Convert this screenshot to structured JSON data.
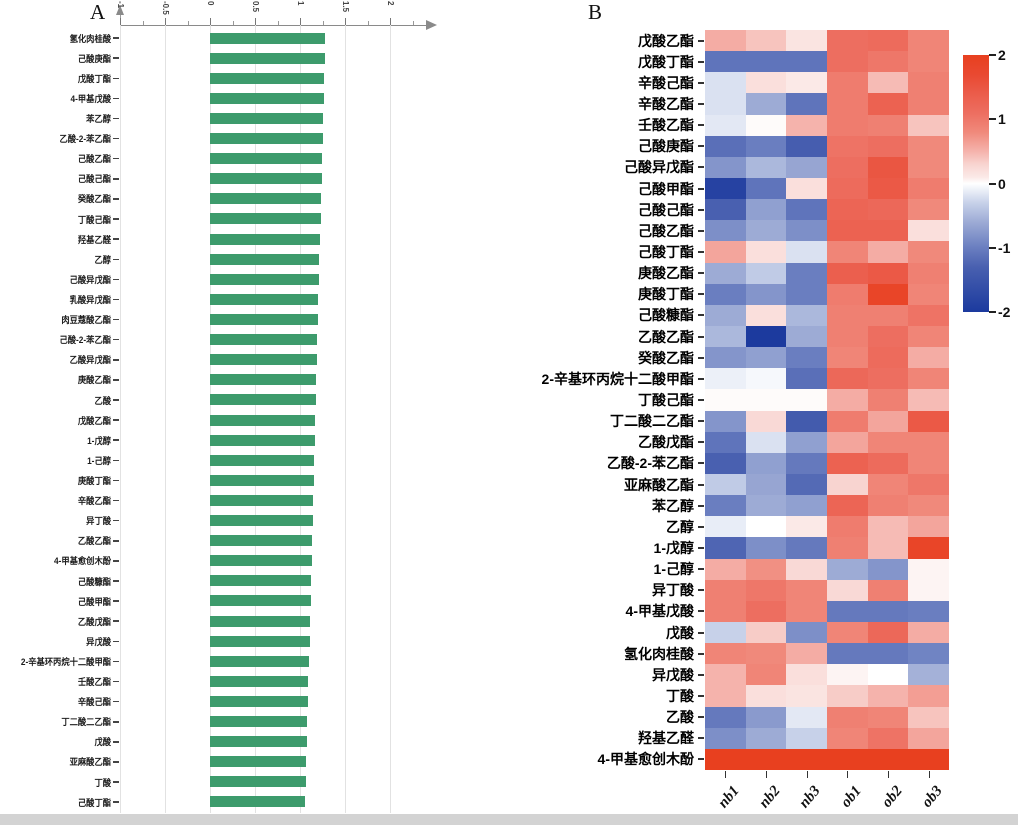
{
  "panels": {
    "a_label": "A",
    "b_label": "B"
  },
  "chart_data": [
    {
      "type": "bar",
      "panel": "A",
      "orientation": "horizontal",
      "bar_color": "#3d9b6c",
      "xlim": [
        -1,
        2.5
      ],
      "x_ticks": [
        -1,
        -0.5,
        0,
        0.5,
        1,
        1.5,
        2
      ],
      "x_tick_labels": [
        "-1",
        "-0.5",
        "0",
        "0.5",
        "1",
        "1.5",
        "2"
      ],
      "grid": true,
      "categories": [
        "氢化肉桂酸",
        "己酸庚酯",
        "戊酸丁酯",
        "4-甲基戊酸",
        "苯乙醇",
        "乙酸-2-苯乙酯",
        "己酸乙酯",
        "己酸己酯",
        "癸酸乙酯",
        "丁酸己酯",
        "羟基乙醛",
        "乙醇",
        "己酸异戊酯",
        "乳酸异戊酯",
        "肉豆蔻酸乙酯",
        "己酸-2-苯乙酯",
        "乙酸异戊酯",
        "庚酸乙酯",
        "乙酸",
        "戊酸乙酯",
        "1-戊醇",
        "1-己醇",
        "庚酸丁酯",
        "辛酸乙酯",
        "异丁酸",
        "乙酸乙酯",
        "4-甲基愈创木酚",
        "己酸糠酯",
        "己酸甲酯",
        "乙酸戊酯",
        "异戊酸",
        "2-辛基环丙烷十二酸甲酯",
        "壬酸乙酯",
        "辛酸己酯",
        "丁二酸二乙酯",
        "戊酸",
        "亚麻酸乙酯",
        "丁酸",
        "己酸丁酯"
      ],
      "values": [
        1.28,
        1.274,
        1.268,
        1.263,
        1.257,
        1.251,
        1.245,
        1.239,
        1.234,
        1.228,
        1.222,
        1.216,
        1.21,
        1.205,
        1.199,
        1.193,
        1.187,
        1.181,
        1.176,
        1.17,
        1.164,
        1.158,
        1.152,
        1.147,
        1.141,
        1.135,
        1.129,
        1.123,
        1.118,
        1.112,
        1.106,
        1.1,
        1.094,
        1.089,
        1.083,
        1.077,
        1.071,
        1.065,
        1.06
      ]
    },
    {
      "type": "heatmap",
      "panel": "B",
      "rows": [
        "戊酸乙酯",
        "戊酸丁酯",
        "辛酸己酯",
        "辛酸乙酯",
        "壬酸乙酯",
        "己酸庚酯",
        "己酸异戊酯",
        "己酸甲酯",
        "己酸己酯",
        "己酸乙酯",
        "己酸丁酯",
        "庚酸乙酯",
        "庚酸丁酯",
        "己酸糠酯",
        "乙酸乙酯",
        "癸酸乙酯",
        "2-辛基环丙烷十二酸甲酯",
        "丁酸己酯",
        "丁二酸二乙酯",
        "乙酸戊酯",
        "乙酸-2-苯乙酯",
        "亚麻酸乙酯",
        "苯乙醇",
        "乙醇",
        "1-戊醇",
        "1-己醇",
        "异丁酸",
        "4-甲基戊酸",
        "戊酸",
        "氢化肉桂酸",
        "异戊酸",
        "丁酸",
        "乙酸",
        "羟基乙醛",
        "4-甲基愈创木酚"
      ],
      "columns": [
        "nb1",
        "nb2",
        "nb3",
        "ob1",
        "ob2",
        "ob3"
      ],
      "values": [
        [
          0.55,
          0.4,
          0.15,
          1.1,
          1.15,
          0.85
        ],
        [
          -1.1,
          -1.1,
          -1.1,
          1.1,
          1.0,
          0.85
        ],
        [
          -0.2,
          0.2,
          0.1,
          0.95,
          0.45,
          0.9
        ],
        [
          -0.2,
          -0.6,
          -1.1,
          0.95,
          1.3,
          0.9
        ],
        [
          -0.15,
          0.02,
          0.5,
          0.95,
          0.9,
          0.4
        ],
        [
          -1.15,
          -1.0,
          -1.35,
          1.05,
          1.1,
          0.8
        ],
        [
          -0.8,
          -0.5,
          -0.65,
          1.1,
          1.5,
          0.8
        ],
        [
          -1.85,
          -1.1,
          0.2,
          1.15,
          1.45,
          0.95
        ],
        [
          -1.3,
          -0.7,
          -1.1,
          1.25,
          1.2,
          0.8
        ],
        [
          -0.85,
          -0.6,
          -0.85,
          1.3,
          1.3,
          0.2
        ],
        [
          0.6,
          0.2,
          -0.2,
          0.85,
          0.55,
          0.8
        ],
        [
          -0.6,
          -0.35,
          -1.0,
          1.35,
          1.45,
          0.9
        ],
        [
          -1.0,
          -0.8,
          -1.0,
          0.95,
          1.85,
          0.85
        ],
        [
          -0.6,
          0.2,
          -0.5,
          0.9,
          0.9,
          1.05
        ],
        [
          -0.5,
          -2.0,
          -0.6,
          0.9,
          1.1,
          0.85
        ],
        [
          -0.8,
          -0.7,
          -1.0,
          0.85,
          1.15,
          0.55
        ],
        [
          -0.1,
          -0.05,
          -1.15,
          1.2,
          1.1,
          0.85
        ],
        [
          0.02,
          0.02,
          0.02,
          0.55,
          0.9,
          0.45
        ],
        [
          -0.8,
          0.25,
          -1.4,
          0.95,
          0.6,
          1.45
        ],
        [
          -1.1,
          -0.2,
          -0.7,
          0.6,
          0.85,
          0.85
        ],
        [
          -1.3,
          -0.7,
          -1.05,
          1.3,
          1.15,
          0.85
        ],
        [
          -0.35,
          -0.65,
          -1.2,
          0.3,
          0.85,
          1.0
        ],
        [
          -1.0,
          -0.6,
          -0.7,
          1.25,
          0.9,
          0.8
        ],
        [
          -0.12,
          0.0,
          0.1,
          0.95,
          0.45,
          0.6
        ],
        [
          -1.25,
          -0.85,
          -1.05,
          0.9,
          0.45,
          1.85
        ],
        [
          0.55,
          0.75,
          0.25,
          -0.6,
          -0.8,
          0.05
        ],
        [
          0.9,
          1.0,
          0.85,
          0.25,
          0.9,
          0.05
        ],
        [
          0.9,
          1.1,
          0.85,
          -1.05,
          -1.05,
          -1.0
        ],
        [
          -0.3,
          0.35,
          -0.85,
          0.85,
          1.2,
          0.55
        ],
        [
          0.85,
          0.8,
          0.55,
          -1.05,
          -1.05,
          -0.95
        ],
        [
          0.5,
          0.85,
          0.2,
          0.05,
          0.0,
          -0.55
        ],
        [
          0.5,
          0.2,
          0.15,
          0.35,
          0.5,
          0.65
        ],
        [
          -1.05,
          -0.75,
          -0.15,
          0.9,
          0.85,
          0.4
        ],
        [
          -0.85,
          -0.6,
          -0.3,
          0.85,
          1.05,
          0.6
        ],
        [
          2.0,
          2.0,
          2.0,
          2.0,
          2.0,
          2.0
        ]
      ],
      "colorbar": {
        "min": -2,
        "max": 2,
        "ticks": [
          "2",
          "1",
          "0",
          "-1",
          "-2"
        ],
        "max_color": "#e8401f",
        "mid_color": "#ffffff",
        "min_color": "#1c3a9e"
      },
      "legend_position": "right"
    }
  ]
}
